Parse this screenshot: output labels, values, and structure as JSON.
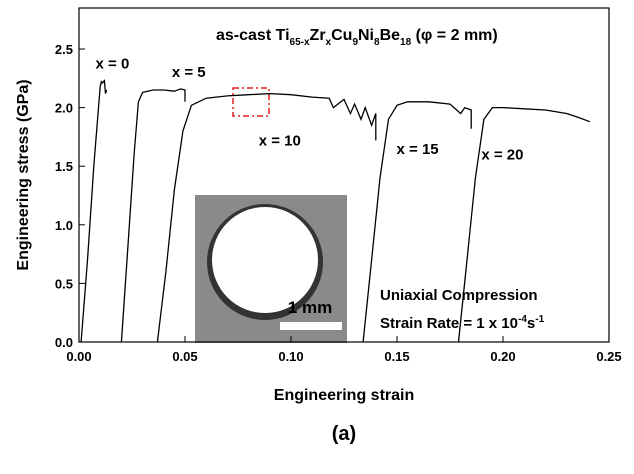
{
  "chart_data": {
    "type": "line",
    "title_parts": [
      "as-cast  Ti",
      "65-x",
      "Zr",
      "x",
      "Cu",
      "9",
      "Ni",
      "8",
      "Be",
      "18",
      "  (φ = 2 mm)"
    ],
    "x_label": "Engineering strain",
    "y_label": "Engineering stress (GPa)",
    "caption": "(a)",
    "annotations": {
      "mode": "Uniaxial Compression",
      "rate_parts": [
        "Strain Rate = 1 x 10",
        "-4",
        "s",
        "-1"
      ],
      "scale_bar": "1 mm"
    },
    "xlim": [
      0,
      0.25
    ],
    "ylim": [
      0,
      2.85
    ],
    "xticks": [
      {
        "value": 0,
        "label": "0.00"
      },
      {
        "value": 0.05,
        "label": "0.05"
      },
      {
        "value": 0.1,
        "label": "0.10"
      },
      {
        "value": 0.15,
        "label": "0.15"
      },
      {
        "value": 0.2,
        "label": "0.20"
      },
      {
        "value": 0.25,
        "label": "0.25"
      }
    ],
    "yticks": [
      {
        "value": 0,
        "label": "0.0"
      },
      {
        "value": 0.5,
        "label": "0.5"
      },
      {
        "value": 1,
        "label": "1.0"
      },
      {
        "value": 1.5,
        "label": "1.5"
      },
      {
        "value": 2,
        "label": "2.0"
      },
      {
        "value": 2.5,
        "label": "2.5"
      }
    ],
    "series": [
      {
        "name": "x = 0",
        "color": "#000000",
        "x": [
          0.001,
          0.004,
          0.007,
          0.01,
          0.0105,
          0.011,
          0.012,
          0.0125,
          0.013
        ],
        "values": [
          0,
          0.7,
          1.5,
          2.18,
          2.22,
          2.21,
          2.23,
          2.12,
          2.15
        ]
      },
      {
        "name": "x = 5",
        "color": "#000000",
        "x": [
          0.02,
          0.023,
          0.026,
          0.028,
          0.03,
          0.035,
          0.04,
          0.045,
          0.048,
          0.05,
          0.05
        ],
        "values": [
          0,
          0.8,
          1.6,
          2.05,
          2.13,
          2.15,
          2.15,
          2.14,
          2.16,
          2.15,
          2.05
        ]
      },
      {
        "name": "x = 10",
        "color": "#000000",
        "x": [
          0.037,
          0.041,
          0.045,
          0.049,
          0.053,
          0.06,
          0.07,
          0.08,
          0.09,
          0.1,
          0.11,
          0.118,
          0.12,
          0.125,
          0.128,
          0.13,
          0.133,
          0.135,
          0.138,
          0.14,
          0.14
        ],
        "values": [
          0,
          0.6,
          1.3,
          1.8,
          2.02,
          2.08,
          2.1,
          2.11,
          2.12,
          2.11,
          2.09,
          2.08,
          2.0,
          2.07,
          1.95,
          2.03,
          1.9,
          2.0,
          1.85,
          1.95,
          1.72
        ]
      },
      {
        "name": "x = 15",
        "color": "#000000",
        "x": [
          0.134,
          0.138,
          0.142,
          0.146,
          0.15,
          0.155,
          0.165,
          0.175,
          0.18,
          0.182,
          0.185,
          0.185
        ],
        "values": [
          0,
          0.7,
          1.4,
          1.9,
          2.02,
          2.05,
          2.05,
          2.03,
          1.95,
          2.0,
          1.98,
          1.82
        ]
      },
      {
        "name": "x = 20",
        "color": "#000000",
        "x": [
          0.179,
          0.183,
          0.187,
          0.191,
          0.195,
          0.2,
          0.21,
          0.22,
          0.23,
          0.235,
          0.241
        ],
        "values": [
          0,
          0.7,
          1.4,
          1.9,
          2.0,
          2.0,
          1.99,
          1.98,
          1.95,
          1.92,
          1.88
        ]
      }
    ]
  }
}
